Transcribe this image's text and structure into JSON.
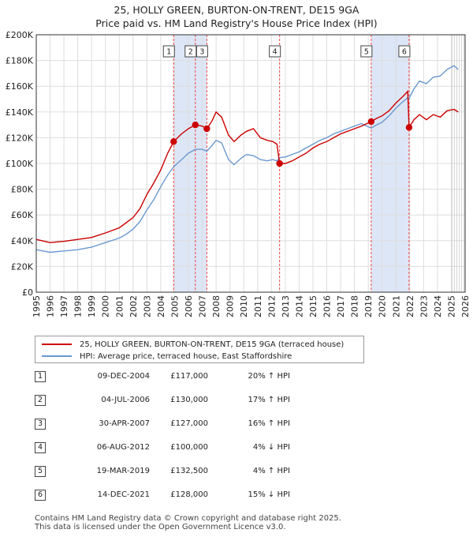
{
  "chart_data": {
    "type": "line",
    "title": "25, HOLLY GREEN, BURTON-ON-TRENT, DE15 9GA",
    "subtitle": "Price paid vs. HM Land Registry's House Price Index (HPI)",
    "xlim": [
      1995,
      2026
    ],
    "ylim": [
      0,
      200000
    ],
    "y_ticks": [
      0,
      20000,
      40000,
      60000,
      80000,
      100000,
      120000,
      140000,
      160000,
      180000,
      200000
    ],
    "y_tick_labels": [
      "£0",
      "£20K",
      "£40K",
      "£60K",
      "£80K",
      "£100K",
      "£120K",
      "£140K",
      "£160K",
      "£180K",
      "£200K"
    ],
    "x_ticks": [
      "1995",
      "1996",
      "1997",
      "1998",
      "1999",
      "2000",
      "2001",
      "2002",
      "2003",
      "2004",
      "2005",
      "2006",
      "2007",
      "2008",
      "2009",
      "2010",
      "2011",
      "2012",
      "2013",
      "2014",
      "2015",
      "2016",
      "2017",
      "2018",
      "2019",
      "2020",
      "2021",
      "2022",
      "2023",
      "2024",
      "2025",
      "2026"
    ],
    "colors": {
      "property": "#cc0000",
      "hpi": "#6a99d0",
      "shade": "#dde6f6",
      "grid": "#dddddd",
      "vline": "#ee4444"
    },
    "series": [
      {
        "name": "property",
        "points": [
          [
            1995.0,
            41000
          ],
          [
            1996.0,
            38500
          ],
          [
            1997.0,
            39500
          ],
          [
            1998.0,
            41000
          ],
          [
            1999.0,
            42500
          ],
          [
            2000.0,
            46000
          ],
          [
            2001.0,
            50000
          ],
          [
            2001.5,
            54000
          ],
          [
            2002.0,
            58000
          ],
          [
            2002.5,
            65000
          ],
          [
            2003.0,
            76000
          ],
          [
            2003.5,
            85000
          ],
          [
            2004.0,
            95000
          ],
          [
            2004.5,
            108000
          ],
          [
            2004.93,
            117000
          ],
          [
            2005.5,
            123000
          ],
          [
            2006.0,
            127000
          ],
          [
            2006.5,
            130000
          ],
          [
            2007.0,
            129000
          ],
          [
            2007.33,
            127000
          ],
          [
            2007.7,
            133000
          ],
          [
            2008.0,
            140000
          ],
          [
            2008.4,
            136000
          ],
          [
            2008.9,
            122000
          ],
          [
            2009.3,
            117000
          ],
          [
            2009.8,
            122000
          ],
          [
            2010.2,
            125000
          ],
          [
            2010.7,
            127000
          ],
          [
            2011.2,
            120000
          ],
          [
            2011.7,
            118000
          ],
          [
            2012.1,
            117000
          ],
          [
            2012.4,
            115000
          ],
          [
            2012.59,
            100000
          ],
          [
            2013.0,
            100000
          ],
          [
            2013.5,
            102000
          ],
          [
            2014.0,
            105000
          ],
          [
            2014.5,
            108000
          ],
          [
            2015.0,
            112000
          ],
          [
            2015.5,
            115000
          ],
          [
            2016.0,
            117000
          ],
          [
            2016.5,
            120000
          ],
          [
            2017.0,
            123000
          ],
          [
            2017.5,
            125000
          ],
          [
            2018.0,
            127000
          ],
          [
            2018.5,
            129000
          ],
          [
            2019.21,
            132500
          ],
          [
            2019.6,
            135000
          ],
          [
            2020.0,
            137000
          ],
          [
            2020.5,
            141000
          ],
          [
            2021.0,
            147000
          ],
          [
            2021.5,
            152000
          ],
          [
            2021.85,
            156000
          ],
          [
            2021.95,
            128000
          ],
          [
            2022.3,
            134000
          ],
          [
            2022.7,
            138000
          ],
          [
            2023.2,
            134000
          ],
          [
            2023.7,
            138000
          ],
          [
            2024.2,
            136000
          ],
          [
            2024.7,
            141000
          ],
          [
            2025.2,
            142000
          ],
          [
            2025.5,
            140000
          ]
        ]
      },
      {
        "name": "hpi",
        "points": [
          [
            1995.0,
            33000
          ],
          [
            1996.0,
            31000
          ],
          [
            1997.0,
            32000
          ],
          [
            1998.0,
            33000
          ],
          [
            1999.0,
            35000
          ],
          [
            2000.0,
            38500
          ],
          [
            2001.0,
            42000
          ],
          [
            2001.5,
            45000
          ],
          [
            2002.0,
            49000
          ],
          [
            2002.5,
            55000
          ],
          [
            2003.0,
            64000
          ],
          [
            2003.5,
            72000
          ],
          [
            2004.0,
            82000
          ],
          [
            2004.5,
            91000
          ],
          [
            2004.93,
            97500
          ],
          [
            2005.5,
            103000
          ],
          [
            2006.0,
            108000
          ],
          [
            2006.5,
            111000
          ],
          [
            2007.0,
            111000
          ],
          [
            2007.33,
            109500
          ],
          [
            2007.7,
            114000
          ],
          [
            2008.0,
            118000
          ],
          [
            2008.4,
            116000
          ],
          [
            2008.9,
            103000
          ],
          [
            2009.3,
            99000
          ],
          [
            2009.8,
            104000
          ],
          [
            2010.2,
            107000
          ],
          [
            2010.7,
            106000
          ],
          [
            2011.2,
            103000
          ],
          [
            2011.7,
            102000
          ],
          [
            2012.1,
            103000
          ],
          [
            2012.4,
            102000
          ],
          [
            2012.59,
            104500
          ],
          [
            2013.0,
            105000
          ],
          [
            2013.5,
            107000
          ],
          [
            2014.0,
            109000
          ],
          [
            2014.5,
            112000
          ],
          [
            2015.0,
            115000
          ],
          [
            2015.5,
            118000
          ],
          [
            2016.0,
            120000
          ],
          [
            2016.5,
            123000
          ],
          [
            2017.0,
            125000
          ],
          [
            2017.5,
            127000
          ],
          [
            2018.0,
            129000
          ],
          [
            2018.5,
            131000
          ],
          [
            2019.21,
            127500
          ],
          [
            2019.6,
            130000
          ],
          [
            2020.0,
            132000
          ],
          [
            2020.5,
            137000
          ],
          [
            2021.0,
            143000
          ],
          [
            2021.5,
            148000
          ],
          [
            2021.85,
            151000
          ],
          [
            2021.95,
            150500
          ],
          [
            2022.3,
            158000
          ],
          [
            2022.7,
            164000
          ],
          [
            2023.2,
            162000
          ],
          [
            2023.7,
            167000
          ],
          [
            2024.2,
            168000
          ],
          [
            2024.7,
            173000
          ],
          [
            2025.2,
            176000
          ],
          [
            2025.5,
            173000
          ]
        ]
      }
    ],
    "sales": [
      {
        "num": "1",
        "x": 2004.93,
        "price": 117000
      },
      {
        "num": "2",
        "x": 2006.5,
        "price": 130000
      },
      {
        "num": "3",
        "x": 2007.33,
        "price": 127000
      },
      {
        "num": "4",
        "x": 2012.59,
        "price": 100000
      },
      {
        "num": "5",
        "x": 2019.21,
        "price": 132500
      },
      {
        "num": "6",
        "x": 2021.95,
        "price": 128000
      }
    ],
    "shaded_ranges": [
      [
        2004.93,
        2007.33
      ],
      [
        2019.21,
        2021.95
      ]
    ],
    "future_from": 2025.0
  },
  "legend": {
    "property_label": "25, HOLLY GREEN, BURTON-ON-TRENT, DE15 9GA (terraced house)",
    "hpi_label": "HPI: Average price, terraced house, East Staffordshire"
  },
  "sales_table": [
    {
      "num": "1",
      "date": "09-DEC-2004",
      "price": "£117,000",
      "hpi": "20% ↑ HPI"
    },
    {
      "num": "2",
      "date": "04-JUL-2006",
      "price": "£130,000",
      "hpi": "17% ↑ HPI"
    },
    {
      "num": "3",
      "date": "30-APR-2007",
      "price": "£127,000",
      "hpi": "16% ↑ HPI"
    },
    {
      "num": "4",
      "date": "06-AUG-2012",
      "price": "£100,000",
      "hpi": "4% ↓ HPI"
    },
    {
      "num": "5",
      "date": "19-MAR-2019",
      "price": "£132,500",
      "hpi": "4% ↑ HPI"
    },
    {
      "num": "6",
      "date": "14-DEC-2021",
      "price": "£128,000",
      "hpi": "15% ↓ HPI"
    }
  ],
  "footer": {
    "line1": "Contains HM Land Registry data © Crown copyright and database right 2025.",
    "line2": "This data is licensed under the Open Government Licence v3.0."
  }
}
